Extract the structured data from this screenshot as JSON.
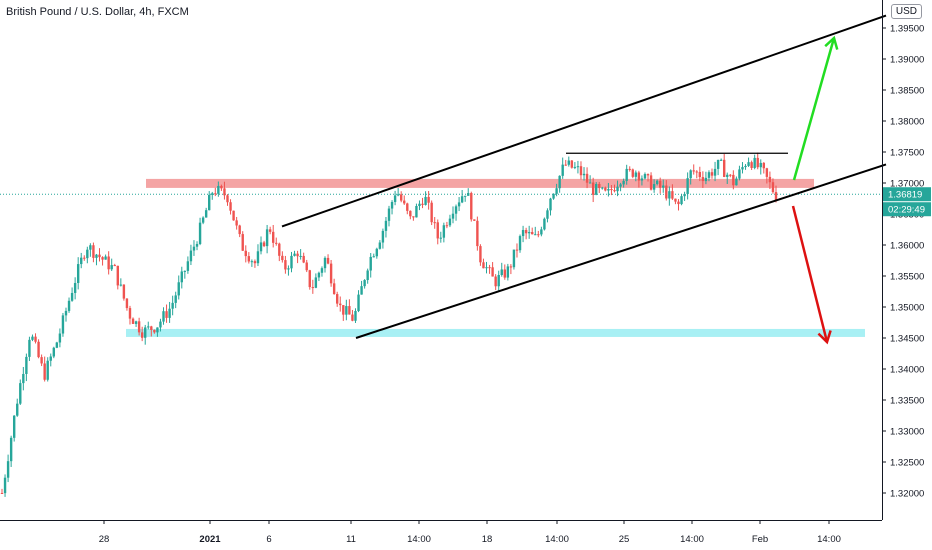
{
  "header": {
    "title": "British Pound / U.S. Dollar, 4h, FXCM",
    "currency": "USD"
  },
  "chart_data": {
    "type": "candlestick",
    "ylim": [
      1.315,
      1.398
    ],
    "y_ticks": [
      "1.39500",
      "1.39000",
      "1.38500",
      "1.38000",
      "1.37500",
      "1.37000",
      "1.36500",
      "1.36000",
      "1.35500",
      "1.35000",
      "1.34500",
      "1.34000",
      "1.33500",
      "1.33000",
      "1.32500",
      "1.32000"
    ],
    "x_ticks": [
      {
        "label": "28",
        "bold": false
      },
      {
        "label": "2021",
        "bold": true
      },
      {
        "label": "6",
        "bold": false
      },
      {
        "label": "11",
        "bold": false
      },
      {
        "label": "14:00",
        "bold": false
      },
      {
        "label": "18",
        "bold": false
      },
      {
        "label": "14:00",
        "bold": false
      },
      {
        "label": "25",
        "bold": false
      },
      {
        "label": "14:00",
        "bold": false
      },
      {
        "label": "Feb",
        "bold": false
      },
      {
        "label": "14:00",
        "bold": false
      }
    ],
    "last_price": "1.36819",
    "countdown": "02:29:49",
    "up_color": "#26a69a",
    "down_color": "#ef5350",
    "price_path": [
      1.32,
      1.334,
      1.346,
      1.339,
      1.345,
      1.353,
      1.36,
      1.358,
      1.356,
      1.349,
      1.346,
      1.347,
      1.35,
      1.356,
      1.362,
      1.369,
      1.368,
      1.36,
      1.357,
      1.363,
      1.356,
      1.359,
      1.353,
      1.358,
      1.35,
      1.348,
      1.357,
      1.362,
      1.369,
      1.364,
      1.368,
      1.361,
      1.366,
      1.369,
      1.358,
      1.354,
      1.356,
      1.362,
      1.361,
      1.368,
      1.373,
      1.372,
      1.369,
      1.368,
      1.371,
      1.372,
      1.37,
      1.369,
      1.366,
      1.372,
      1.371,
      1.373,
      1.37,
      1.374,
      1.372,
      1.368
    ],
    "annotations": {
      "resistance_zone": {
        "price": [
          1.3694,
          1.3705
        ],
        "color": "#f4a4a4"
      },
      "support_zone": {
        "price": [
          1.3455,
          1.3463
        ],
        "color": "#a8f0f4"
      },
      "channel_upper": {
        "from": 1.363,
        "to": 1.397
      },
      "channel_lower": {
        "from": 1.345,
        "to": 1.373
      },
      "range_top": {
        "price": 1.3748
      },
      "bull_arrow": {
        "color": "#22dd22"
      },
      "bear_arrow": {
        "color": "#dd1111"
      }
    }
  }
}
